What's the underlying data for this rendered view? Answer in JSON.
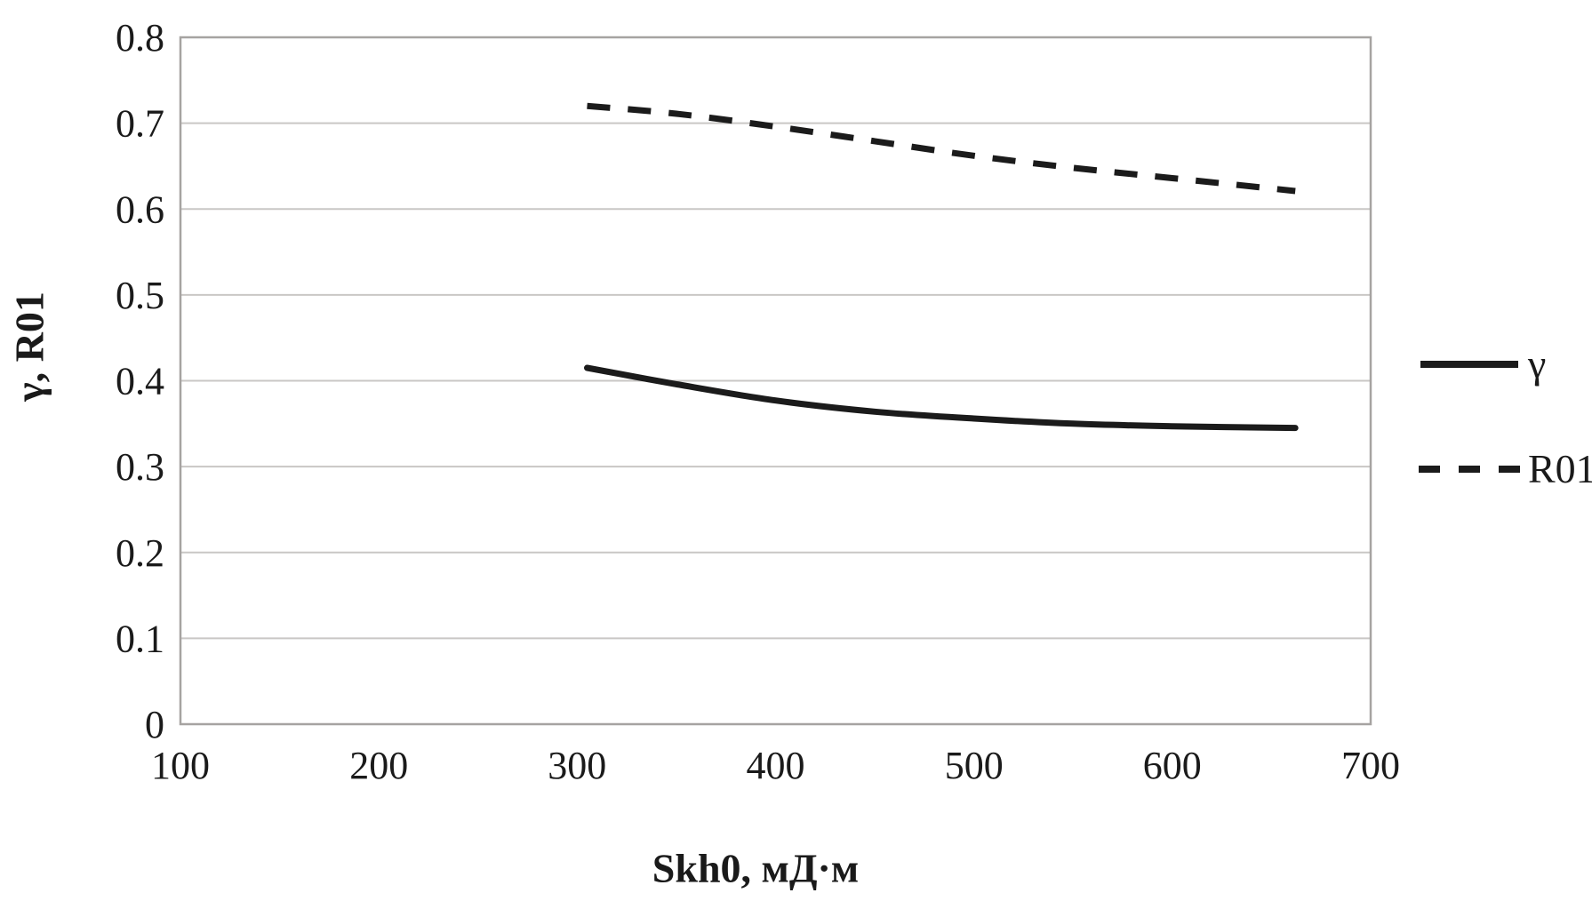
{
  "chart_data": {
    "type": "line",
    "title": "",
    "xlabel": "Skh0, мД·м",
    "ylabel": "γ, R01",
    "xlim": [
      100,
      700
    ],
    "ylim": [
      0,
      0.8
    ],
    "xticks": [
      100,
      200,
      300,
      400,
      500,
      600,
      700
    ],
    "xtick_labels": [
      "100",
      "200",
      "300",
      "400",
      "500",
      "600",
      "700"
    ],
    "yticks": [
      0,
      0.1,
      0.2,
      0.3,
      0.4,
      0.5,
      0.6,
      0.7,
      0.8
    ],
    "ytick_labels": [
      "0",
      "0.1",
      "0.2",
      "0.3",
      "0.4",
      "0.5",
      "0.6",
      "0.7",
      "0.8"
    ],
    "grid": "horizontal",
    "legend_position": "right",
    "series": [
      {
        "name": "γ",
        "style": "solid",
        "color": "#1b1b1b",
        "x": [
          305,
          350,
          400,
          450,
          500,
          550,
          600,
          662
        ],
        "y": [
          0.415,
          0.396,
          0.377,
          0.364,
          0.356,
          0.35,
          0.347,
          0.345
        ]
      },
      {
        "name": "R01",
        "style": "dashed",
        "color": "#1b1b1b",
        "x": [
          305,
          350,
          400,
          450,
          500,
          550,
          600,
          662
        ],
        "y": [
          0.72,
          0.711,
          0.696,
          0.679,
          0.662,
          0.648,
          0.636,
          0.621
        ]
      }
    ],
    "colors": {
      "background": "#ffffff",
      "gridline": "#c9c7c5",
      "frame": "#a6a3a1",
      "text": "#1a1a1a"
    }
  }
}
